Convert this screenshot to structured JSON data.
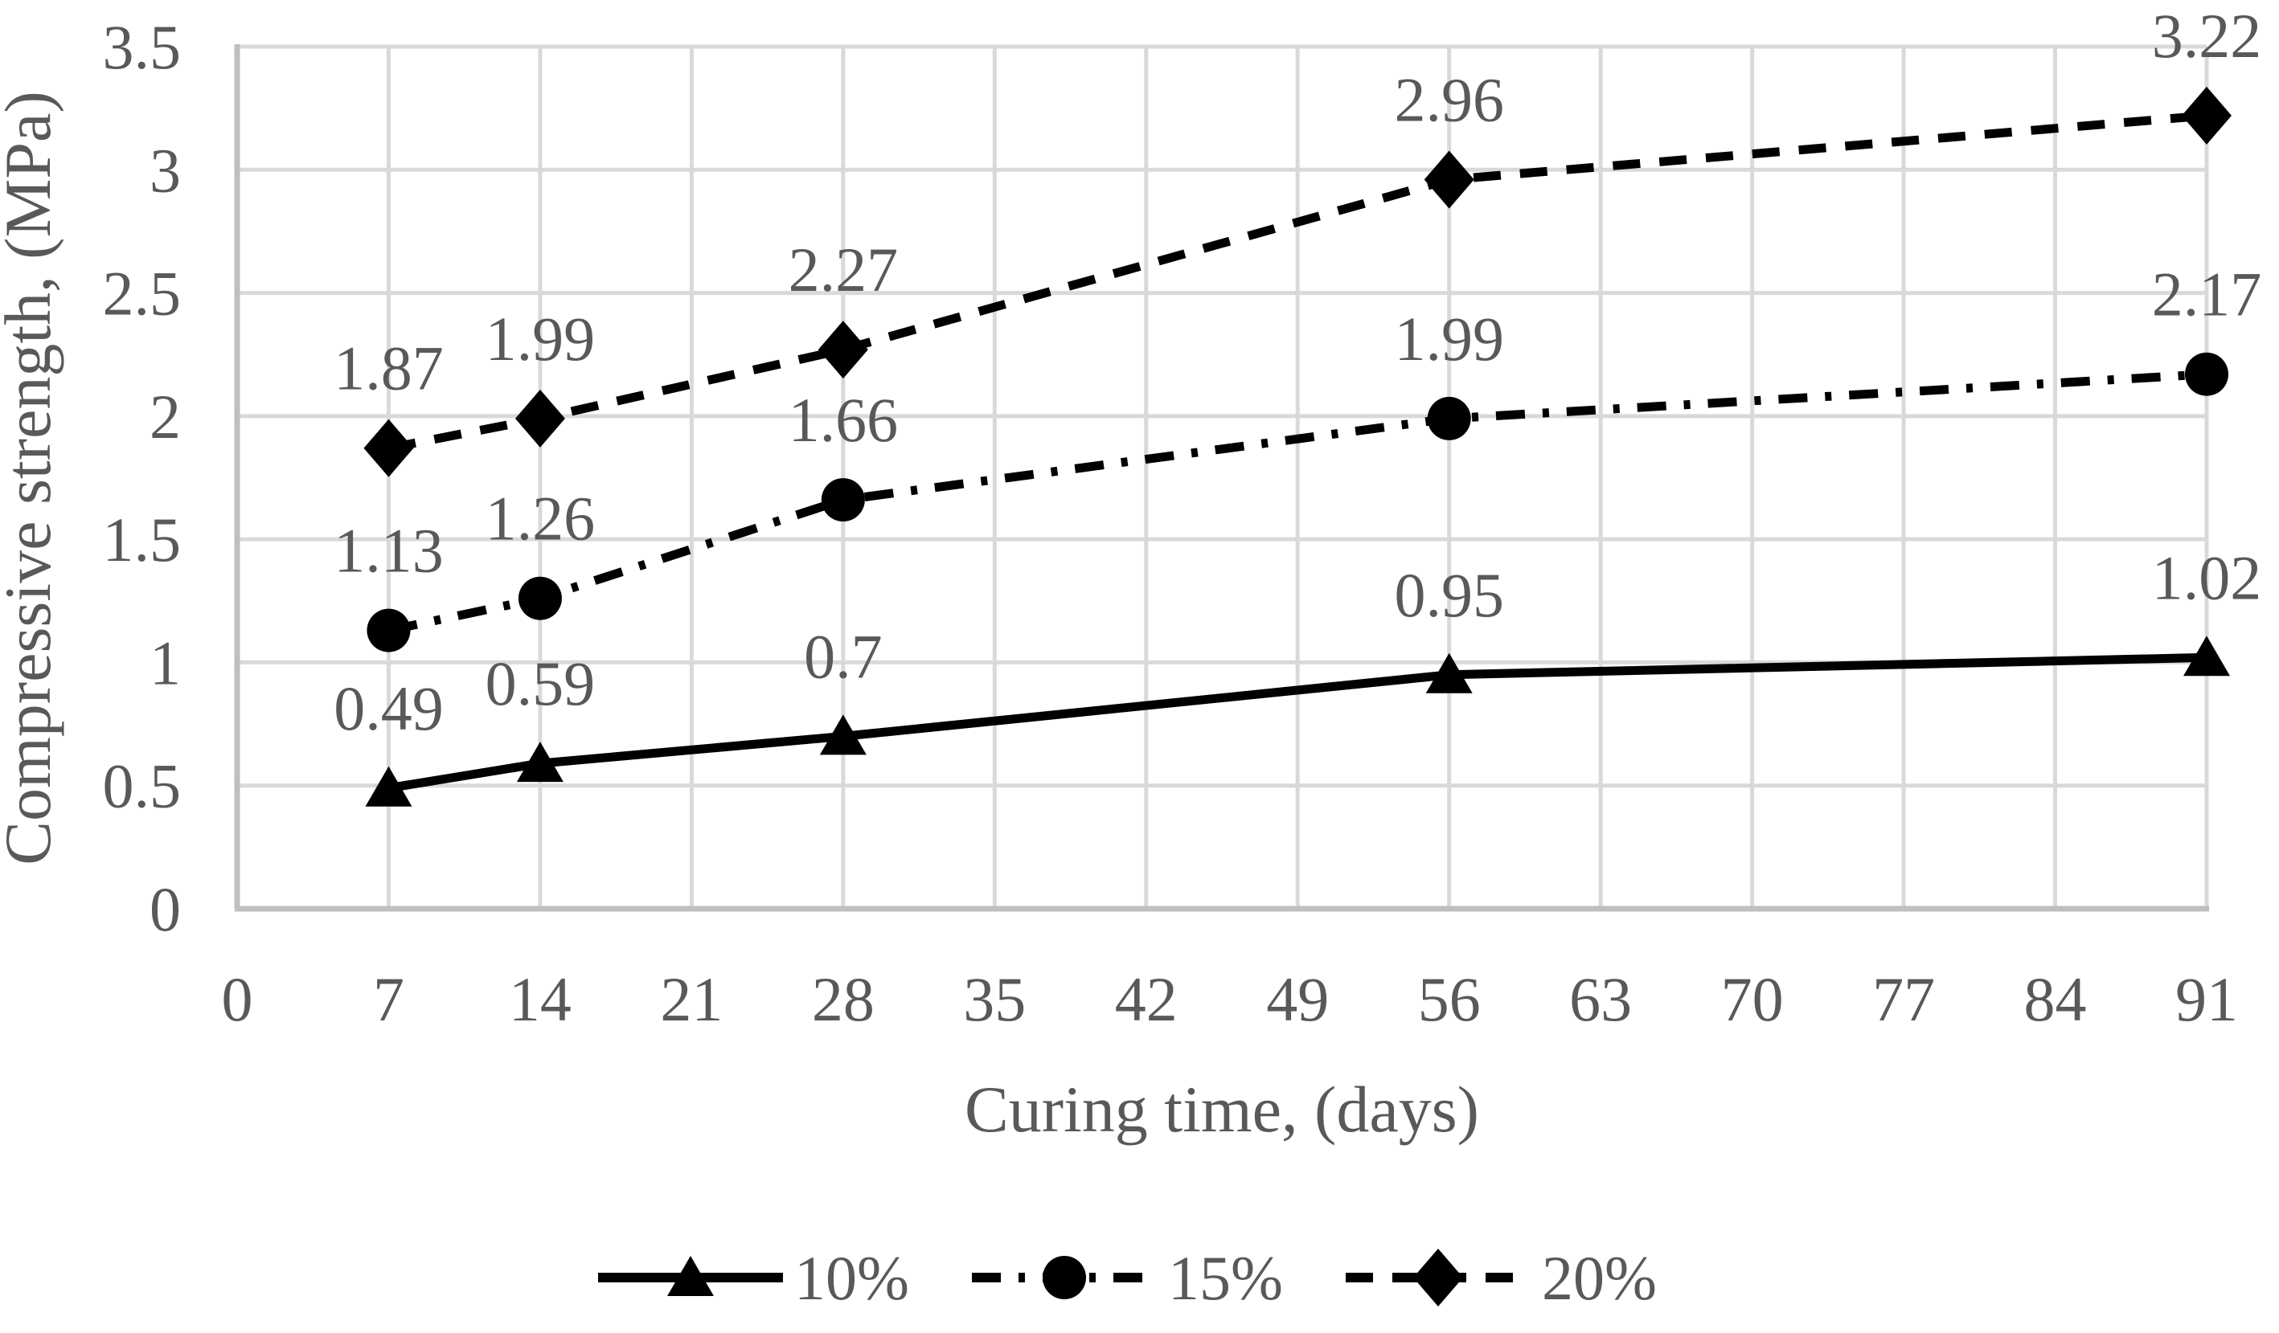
{
  "chart_data": {
    "type": "line",
    "title": "",
    "xlabel": "Curing time, (days)",
    "ylabel": "Compressive strength, (MPa)",
    "x": [
      7,
      14,
      28,
      56,
      91
    ],
    "series": [
      {
        "name": "10%",
        "marker": "triangle",
        "line_style": "solid",
        "values": [
          0.49,
          0.59,
          0.7,
          0.95,
          1.02
        ],
        "labels": [
          "0.49",
          "0.59",
          "0.7",
          "0.95",
          "1.02"
        ]
      },
      {
        "name": "15%",
        "marker": "circle",
        "line_style": "dash-dot",
        "values": [
          1.13,
          1.26,
          1.66,
          1.99,
          2.17
        ],
        "labels": [
          "1.13",
          "1.26",
          "1.66",
          "1.99",
          "2.17"
        ]
      },
      {
        "name": "20%",
        "marker": "diamond",
        "line_style": "dash",
        "values": [
          1.87,
          1.99,
          2.27,
          2.96,
          3.22
        ],
        "labels": [
          "1.87",
          "1.99",
          "2.27",
          "2.96",
          "3.22"
        ]
      }
    ],
    "x_tick_labels": [
      "0",
      "7",
      "14",
      "21",
      "28",
      "35",
      "42",
      "49",
      "56",
      "63",
      "70",
      "77",
      "84",
      "91"
    ],
    "y_tick_labels": [
      "0",
      "0.5",
      "1",
      "1.5",
      "2",
      "2.5",
      "3",
      "3.5"
    ],
    "xlim": [
      0,
      91
    ],
    "ylim": [
      0,
      3.5
    ],
    "grid": true,
    "legend_position": "bottom",
    "colors": {
      "series": "#000000",
      "text": "#595959",
      "gridline": "#d9d9d9",
      "axis": "#bfbfbf",
      "background": "#ffffff"
    }
  }
}
